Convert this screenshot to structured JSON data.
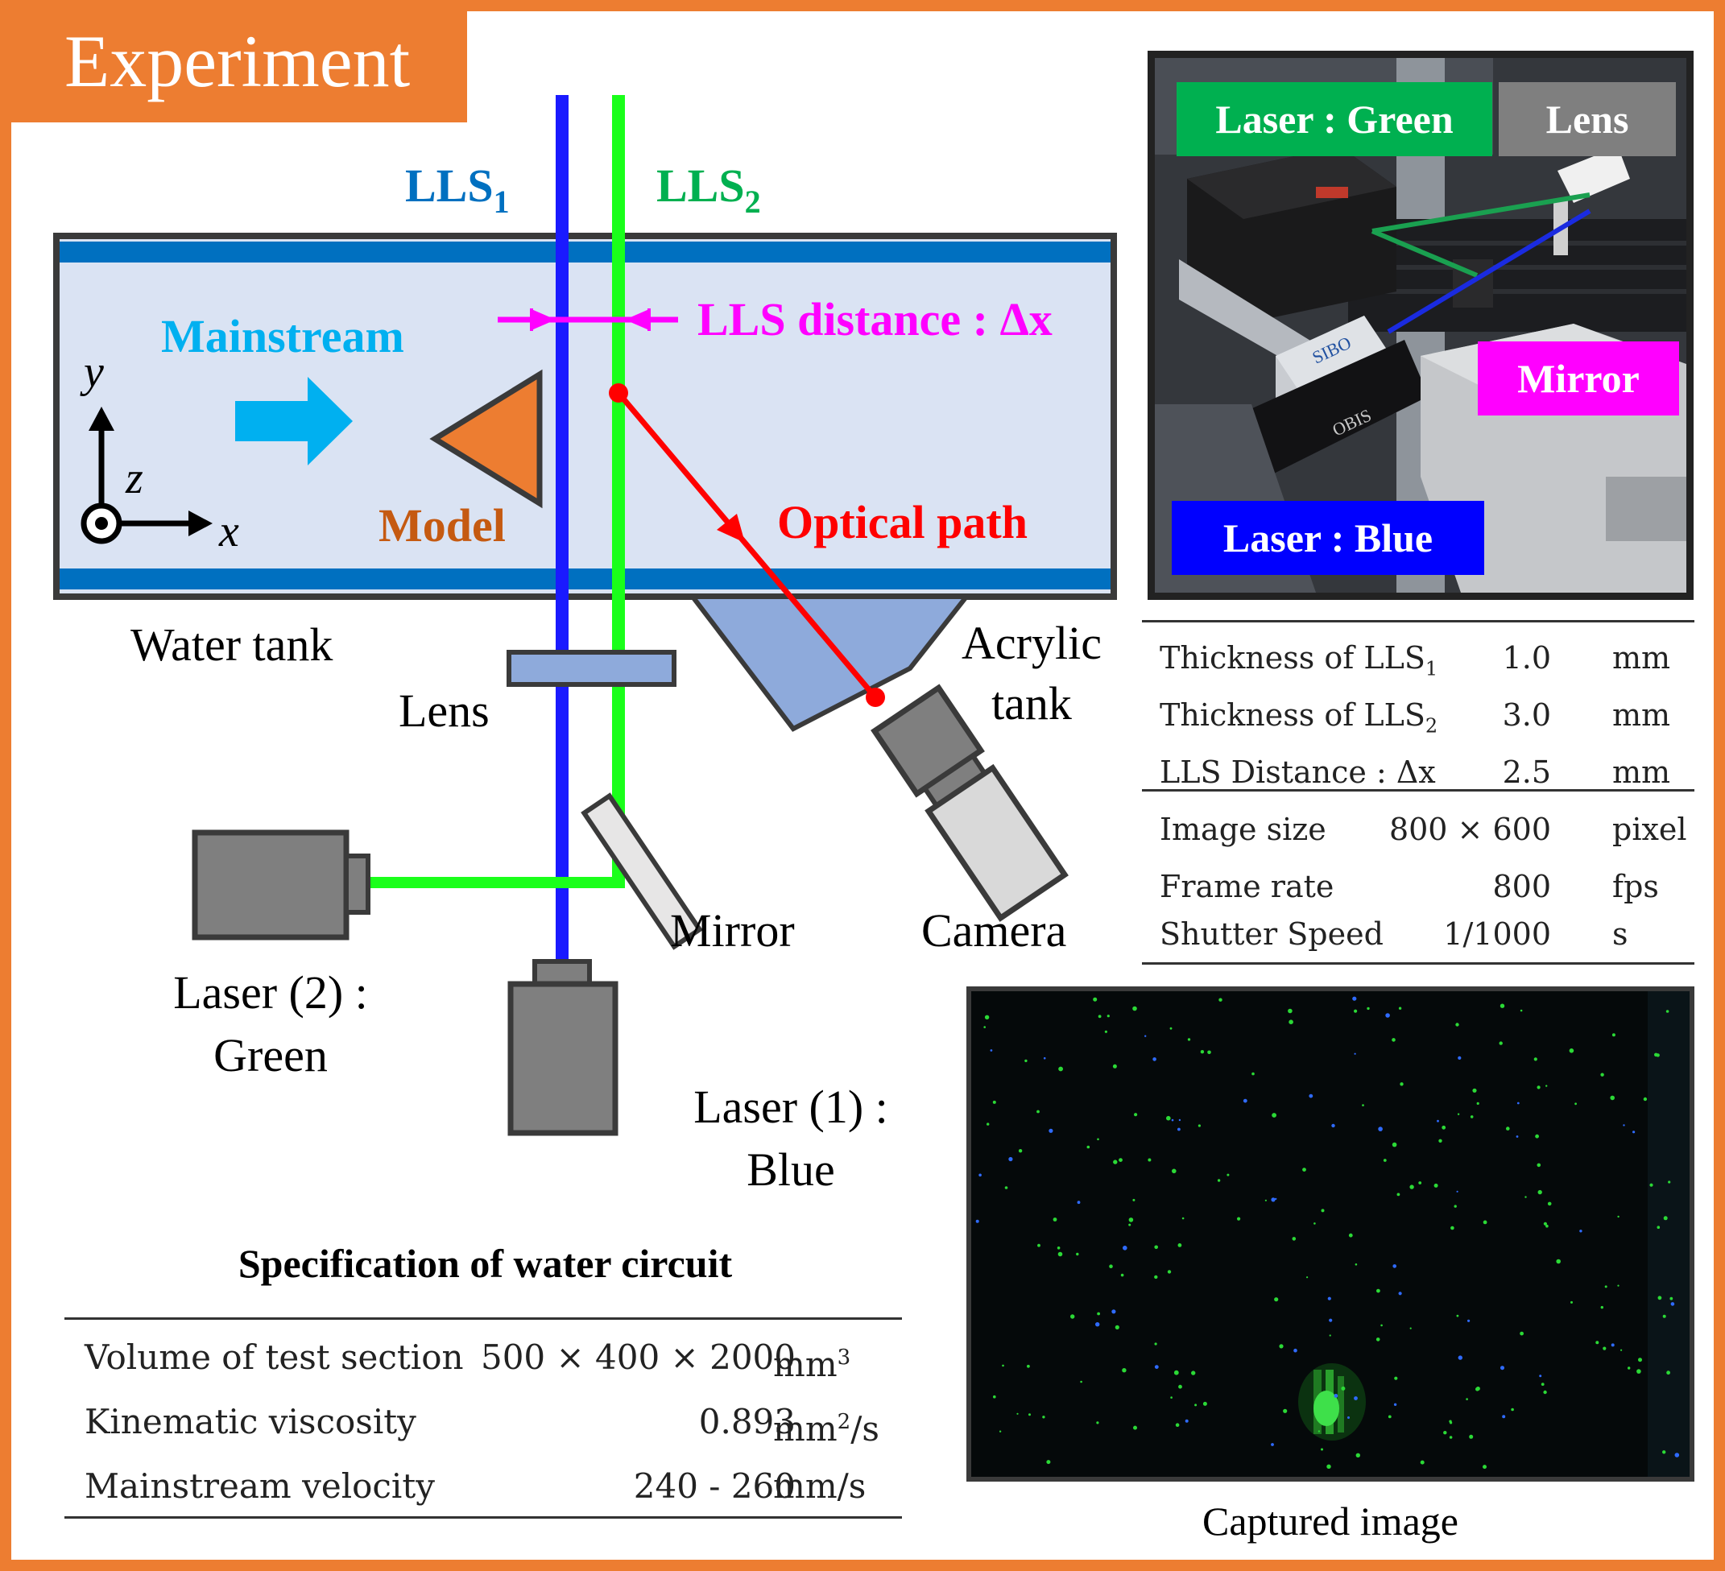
{
  "header": {
    "badge": "Experiment"
  },
  "diagram": {
    "lls1": "LLS",
    "lls1_sub": "1",
    "lls2": "LLS",
    "lls2_sub": "2",
    "mainstream": "Mainstream",
    "axis_y": "y",
    "axis_z": "z",
    "axis_x": "x",
    "model": "Model",
    "lls_distance": "LLS distance : Δx",
    "optical_path": "Optical path",
    "water_tank": "Water tank",
    "lens": "Lens",
    "acrylic_tank_1": "Acrylic",
    "acrylic_tank_2": "tank",
    "mirror": "Mirror",
    "camera": "Camera",
    "laser2_line1": "Laser (2) :",
    "laser2_line2": "Green",
    "laser1_line1": "Laser (1) :",
    "laser1_line2": "Blue",
    "colors": {
      "blue_beam": "#1a1aff",
      "green_beam": "#1aff1a",
      "optical_path": "#ff0000",
      "lls_distance": "#ff00ff",
      "mainstream": "#00b0f0",
      "model": "#ed7d31",
      "tank_fill": "#dae3f3",
      "tank_wall": "#0070c0"
    }
  },
  "photo": {
    "label_green": "Laser : Green",
    "label_lens": "Lens",
    "label_mirror": "Mirror",
    "label_blue": "Laser : Blue",
    "text_sibo": "SIBO",
    "text_obis": "OBIS"
  },
  "camera_table": {
    "rows": [
      {
        "name": "Thickness of LLS",
        "sub": "1",
        "value": "1.0",
        "unit": "mm"
      },
      {
        "name": "Thickness of LLS",
        "sub": "2",
        "value": "3.0",
        "unit": "mm"
      },
      {
        "name": "LLS Distance :  Δx",
        "sub": "",
        "value": "2.5",
        "unit": "mm"
      },
      {
        "name": "Image size",
        "sub": "",
        "value": "800 × 600",
        "unit": "pixel"
      },
      {
        "name": "Frame rate",
        "sub": "",
        "value": "800",
        "unit": "fps"
      },
      {
        "name": "Shutter Speed",
        "sub": "",
        "value": "1/1000",
        "unit": "s"
      }
    ]
  },
  "water_table": {
    "title": "Specification of water circuit",
    "rows": [
      {
        "name": "Volume of test section",
        "value": "500 × 400 × 2000",
        "unit": "mm",
        "sup": "3",
        "unit_after": ""
      },
      {
        "name": "Kinematic viscosity",
        "value": "0.893",
        "unit": "mm",
        "sup": "2",
        "unit_after": "/s"
      },
      {
        "name": "Mainstream velocity",
        "value": "240 - 260",
        "unit": "mm/s",
        "sup": "",
        "unit_after": ""
      }
    ]
  },
  "captured": {
    "caption": "Captured image"
  }
}
